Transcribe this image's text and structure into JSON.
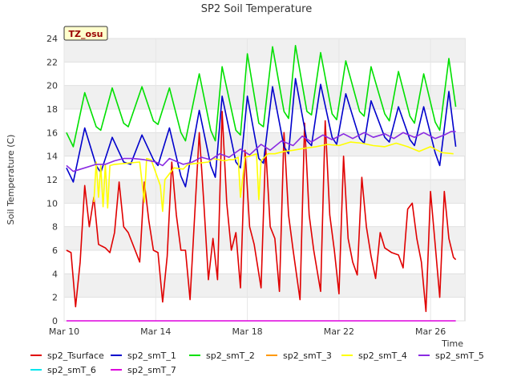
{
  "chart_data": {
    "type": "line",
    "title": "SP2 Soil Temperature",
    "xlabel": "Time",
    "ylabel": "Soil Temperature (C)",
    "badge": "TZ_osu",
    "ylim": [
      0,
      24
    ],
    "xlim_days": [
      10,
      27.5
    ],
    "y_ticks": [
      "0",
      "2",
      "4",
      "6",
      "8",
      "10",
      "12",
      "14",
      "16",
      "18",
      "20",
      "22",
      "24"
    ],
    "x_ticks": [
      {
        "label": "Mar 10",
        "day": 10
      },
      {
        "label": "Mar 14",
        "day": 14
      },
      {
        "label": "Mar 18",
        "day": 18
      },
      {
        "label": "Mar 22",
        "day": 22
      },
      {
        "label": "Mar 26",
        "day": 26
      }
    ],
    "grid": "horizontal bands",
    "colors": {
      "sp2_Tsurface": "#e00000",
      "sp2_smT_1": "#0000cc",
      "sp2_smT_2": "#00e000",
      "sp2_smT_3": "#ff9900",
      "sp2_smT_4": "#ffff00",
      "sp2_smT_5": "#8a2be2",
      "sp2_smT_6": "#00e5ee",
      "sp2_smT_7": "#dd00dd"
    },
    "series": [
      {
        "name": "sp2_Tsurface",
        "key": "s_tsurface",
        "points": [
          [
            10.1,
            6.0
          ],
          [
            10.3,
            5.8
          ],
          [
            10.5,
            1.2
          ],
          [
            10.7,
            5.0
          ],
          [
            10.9,
            11.5
          ],
          [
            11.1,
            8.0
          ],
          [
            11.3,
            10.5
          ],
          [
            11.5,
            6.5
          ],
          [
            11.8,
            6.2
          ],
          [
            12.0,
            5.8
          ],
          [
            12.2,
            7.5
          ],
          [
            12.4,
            11.8
          ],
          [
            12.6,
            8.0
          ],
          [
            12.8,
            7.5
          ],
          [
            13.1,
            6.0
          ],
          [
            13.3,
            5.0
          ],
          [
            13.5,
            11.8
          ],
          [
            13.7,
            8.5
          ],
          [
            13.9,
            6.0
          ],
          [
            14.1,
            5.8
          ],
          [
            14.3,
            1.6
          ],
          [
            14.5,
            5.5
          ],
          [
            14.7,
            13.5
          ],
          [
            14.9,
            9.0
          ],
          [
            15.1,
            6.0
          ],
          [
            15.3,
            6.0
          ],
          [
            15.5,
            1.8
          ],
          [
            15.7,
            9.0
          ],
          [
            15.9,
            16.0
          ],
          [
            16.1,
            10.0
          ],
          [
            16.3,
            3.5
          ],
          [
            16.5,
            7.0
          ],
          [
            16.7,
            3.5
          ],
          [
            16.9,
            17.8
          ],
          [
            17.1,
            10.0
          ],
          [
            17.3,
            6.0
          ],
          [
            17.5,
            7.5
          ],
          [
            17.7,
            2.8
          ],
          [
            17.9,
            14.5
          ],
          [
            18.1,
            8.0
          ],
          [
            18.3,
            6.5
          ],
          [
            18.6,
            2.8
          ],
          [
            18.8,
            14.8
          ],
          [
            19.0,
            8.0
          ],
          [
            19.2,
            7.0
          ],
          [
            19.4,
            2.5
          ],
          [
            19.6,
            16.0
          ],
          [
            19.8,
            9.0
          ],
          [
            20.0,
            6.0
          ],
          [
            20.3,
            1.8
          ],
          [
            20.5,
            16.8
          ],
          [
            20.7,
            9.0
          ],
          [
            20.9,
            6.0
          ],
          [
            21.2,
            2.5
          ],
          [
            21.4,
            17.0
          ],
          [
            21.6,
            9.0
          ],
          [
            21.8,
            6.0
          ],
          [
            22.0,
            2.3
          ],
          [
            22.2,
            14.0
          ],
          [
            22.4,
            7.0
          ],
          [
            22.6,
            5.0
          ],
          [
            22.8,
            3.9
          ],
          [
            23.0,
            12.2
          ],
          [
            23.2,
            8.0
          ],
          [
            23.4,
            5.5
          ],
          [
            23.6,
            3.6
          ],
          [
            23.8,
            7.5
          ],
          [
            24.0,
            6.2
          ],
          [
            24.3,
            5.8
          ],
          [
            24.6,
            5.6
          ],
          [
            24.8,
            4.5
          ],
          [
            25.0,
            9.5
          ],
          [
            25.2,
            10.0
          ],
          [
            25.4,
            7.0
          ],
          [
            25.6,
            5.0
          ],
          [
            25.8,
            0.8
          ],
          [
            26.0,
            11.0
          ],
          [
            26.2,
            6.5
          ],
          [
            26.4,
            2.0
          ],
          [
            26.6,
            11.0
          ],
          [
            26.8,
            7.0
          ],
          [
            27.0,
            5.4
          ],
          [
            27.1,
            5.2
          ]
        ]
      },
      {
        "name": "sp2_smT_1",
        "key": "s_smt1",
        "points": [
          [
            10.1,
            13.0
          ],
          [
            10.4,
            11.8
          ],
          [
            10.9,
            16.4
          ],
          [
            11.4,
            13.2
          ],
          [
            11.6,
            12.6
          ],
          [
            12.1,
            15.6
          ],
          [
            12.6,
            13.5
          ],
          [
            12.9,
            13.3
          ],
          [
            13.4,
            15.8
          ],
          [
            13.9,
            13.7
          ],
          [
            14.1,
            13.2
          ],
          [
            14.6,
            16.4
          ],
          [
            15.1,
            12.3
          ],
          [
            15.3,
            11.4
          ],
          [
            15.9,
            17.9
          ],
          [
            16.4,
            13.2
          ],
          [
            16.6,
            12.2
          ],
          [
            16.9,
            19.1
          ],
          [
            17.5,
            13.5
          ],
          [
            17.7,
            13.0
          ],
          [
            18.0,
            19.1
          ],
          [
            18.5,
            13.8
          ],
          [
            18.7,
            13.4
          ],
          [
            19.1,
            19.9
          ],
          [
            19.6,
            14.8
          ],
          [
            19.8,
            14.2
          ],
          [
            20.1,
            20.6
          ],
          [
            20.6,
            15.3
          ],
          [
            20.8,
            14.9
          ],
          [
            21.2,
            20.1
          ],
          [
            21.7,
            15.6
          ],
          [
            21.9,
            15.0
          ],
          [
            22.3,
            19.3
          ],
          [
            22.9,
            15.5
          ],
          [
            23.1,
            15.1
          ],
          [
            23.4,
            18.7
          ],
          [
            24.0,
            15.6
          ],
          [
            24.2,
            15.2
          ],
          [
            24.6,
            18.2
          ],
          [
            25.1,
            15.4
          ],
          [
            25.3,
            14.9
          ],
          [
            25.7,
            18.2
          ],
          [
            26.2,
            14.3
          ],
          [
            26.4,
            13.2
          ],
          [
            26.8,
            19.5
          ],
          [
            27.1,
            14.8
          ]
        ]
      },
      {
        "name": "sp2_smT_2",
        "key": "s_smt2",
        "points": [
          [
            10.1,
            16.0
          ],
          [
            10.4,
            14.8
          ],
          [
            10.9,
            19.4
          ],
          [
            11.4,
            16.5
          ],
          [
            11.6,
            16.2
          ],
          [
            12.1,
            19.8
          ],
          [
            12.6,
            16.8
          ],
          [
            12.8,
            16.5
          ],
          [
            13.4,
            19.9
          ],
          [
            13.9,
            17.0
          ],
          [
            14.1,
            16.7
          ],
          [
            14.6,
            19.8
          ],
          [
            15.1,
            16.0
          ],
          [
            15.3,
            15.3
          ],
          [
            15.9,
            21.0
          ],
          [
            16.4,
            16.2
          ],
          [
            16.6,
            15.3
          ],
          [
            16.9,
            21.6
          ],
          [
            17.5,
            16.2
          ],
          [
            17.7,
            15.8
          ],
          [
            18.0,
            22.7
          ],
          [
            18.5,
            16.8
          ],
          [
            18.7,
            16.5
          ],
          [
            19.1,
            23.3
          ],
          [
            19.6,
            17.8
          ],
          [
            19.8,
            17.2
          ],
          [
            20.1,
            23.4
          ],
          [
            20.6,
            17.8
          ],
          [
            20.8,
            17.5
          ],
          [
            21.2,
            22.8
          ],
          [
            21.7,
            17.6
          ],
          [
            21.9,
            17.1
          ],
          [
            22.3,
            22.1
          ],
          [
            22.9,
            17.8
          ],
          [
            23.1,
            17.4
          ],
          [
            23.4,
            21.6
          ],
          [
            24.0,
            17.6
          ],
          [
            24.2,
            17.0
          ],
          [
            24.6,
            21.2
          ],
          [
            25.1,
            17.4
          ],
          [
            25.3,
            16.8
          ],
          [
            25.7,
            21.0
          ],
          [
            26.2,
            16.9
          ],
          [
            26.4,
            16.2
          ],
          [
            26.8,
            22.3
          ],
          [
            27.1,
            18.2
          ]
        ]
      },
      {
        "name": "sp2_smT_3",
        "key": "s_smt3",
        "points": []
      },
      {
        "name": "sp2_smT_4",
        "key": "s_smt4",
        "points": [
          [
            11.3,
            10.1
          ],
          [
            11.4,
            13.5
          ],
          [
            11.5,
            10.5
          ],
          [
            11.6,
            13.2
          ],
          [
            11.7,
            9.7
          ],
          [
            11.8,
            13.3
          ],
          [
            11.9,
            9.6
          ],
          [
            12.0,
            13.2
          ],
          [
            12.2,
            13.3
          ],
          [
            13.3,
            13.5
          ],
          [
            13.5,
            10.1
          ],
          [
            13.6,
            13.8
          ],
          [
            13.8,
            13.7
          ],
          [
            14.2,
            11.5
          ],
          [
            14.3,
            9.3
          ],
          [
            14.4,
            12.0
          ],
          [
            14.8,
            13.0
          ],
          [
            15.2,
            12.9
          ],
          [
            15.4,
            13.3
          ],
          [
            16.3,
            13.5
          ],
          [
            16.5,
            13.8
          ],
          [
            17.0,
            13.6
          ],
          [
            17.2,
            13.7
          ],
          [
            17.4,
            13.7
          ],
          [
            17.6,
            13.9
          ],
          [
            17.7,
            10.5
          ],
          [
            17.9,
            13.9
          ],
          [
            18.1,
            14.0
          ],
          [
            18.4,
            14.2
          ],
          [
            18.5,
            10.3
          ],
          [
            18.6,
            13.6
          ],
          [
            18.9,
            14.2
          ],
          [
            19.2,
            14.2
          ],
          [
            19.6,
            14.4
          ],
          [
            20.0,
            14.5
          ],
          [
            20.6,
            14.7
          ],
          [
            21.0,
            14.8
          ],
          [
            21.5,
            15.0
          ],
          [
            22.0,
            14.9
          ],
          [
            22.5,
            15.2
          ],
          [
            23.0,
            15.1
          ],
          [
            23.5,
            14.9
          ],
          [
            24.0,
            14.8
          ],
          [
            24.5,
            15.1
          ],
          [
            25.0,
            14.8
          ],
          [
            25.5,
            14.4
          ],
          [
            26.0,
            14.8
          ],
          [
            26.5,
            14.3
          ],
          [
            27.0,
            14.2
          ]
        ]
      },
      {
        "name": "sp2_smT_5",
        "key": "s_smt5",
        "points": [
          [
            10.1,
            13.2
          ],
          [
            10.4,
            12.7
          ],
          [
            10.9,
            13.0
          ],
          [
            11.4,
            13.3
          ],
          [
            11.8,
            13.3
          ],
          [
            12.2,
            13.6
          ],
          [
            12.6,
            13.8
          ],
          [
            13.0,
            13.8
          ],
          [
            13.5,
            13.7
          ],
          [
            14.0,
            13.5
          ],
          [
            14.3,
            13.2
          ],
          [
            14.6,
            13.8
          ],
          [
            15.2,
            13.3
          ],
          [
            15.6,
            13.5
          ],
          [
            16.0,
            13.9
          ],
          [
            16.4,
            13.7
          ],
          [
            16.8,
            14.2
          ],
          [
            17.2,
            13.9
          ],
          [
            17.7,
            14.6
          ],
          [
            18.1,
            14.1
          ],
          [
            18.6,
            15.0
          ],
          [
            19.0,
            14.5
          ],
          [
            19.5,
            15.3
          ],
          [
            20.0,
            14.9
          ],
          [
            20.4,
            15.7
          ],
          [
            20.8,
            15.2
          ],
          [
            21.3,
            15.8
          ],
          [
            21.7,
            15.4
          ],
          [
            22.2,
            15.9
          ],
          [
            22.6,
            15.5
          ],
          [
            23.1,
            16.0
          ],
          [
            23.5,
            15.6
          ],
          [
            24.0,
            15.9
          ],
          [
            24.4,
            15.5
          ],
          [
            24.8,
            16.0
          ],
          [
            25.3,
            15.6
          ],
          [
            25.7,
            16.0
          ],
          [
            26.2,
            15.5
          ],
          [
            26.6,
            15.8
          ],
          [
            26.9,
            16.1
          ],
          [
            27.1,
            16.1
          ]
        ]
      },
      {
        "name": "sp2_smT_6",
        "key": "s_smt6",
        "points": []
      },
      {
        "name": "sp2_smT_7",
        "key": "s_smt7",
        "points": [
          [
            10.1,
            0.0
          ],
          [
            27.1,
            0.0
          ]
        ]
      }
    ]
  }
}
